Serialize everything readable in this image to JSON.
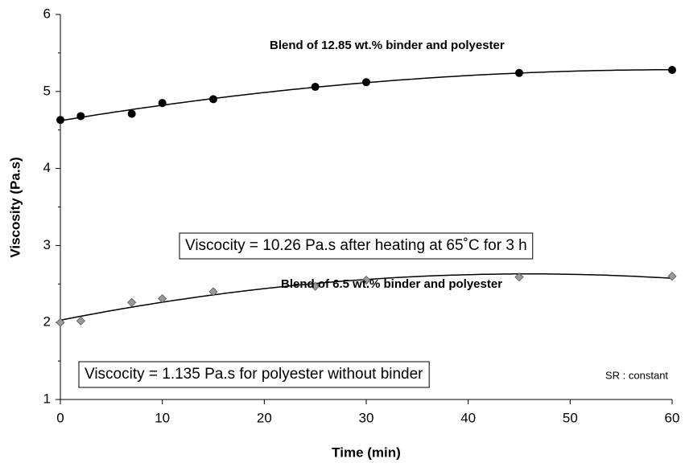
{
  "chart_data": {
    "type": "scatter",
    "x_label": "Time (min)",
    "y_label": "Viscosity (Pa.s)",
    "x": [
      0,
      2,
      7,
      10,
      15,
      25,
      30,
      45,
      60
    ],
    "series": [
      {
        "name": "Blend of 12.85 wt.% binder and polyester",
        "color": "#000000",
        "marker": "circle",
        "trendline": true,
        "values": [
          4.63,
          4.68,
          4.71,
          4.85,
          4.9,
          5.06,
          5.12,
          5.24,
          5.28
        ]
      },
      {
        "name": "Blend of 6.5 wt.% binder and polyester",
        "color": "#999999",
        "marker": "diamond",
        "trendline": true,
        "values": [
          2.0,
          2.02,
          2.26,
          2.31,
          2.4,
          2.47,
          2.55,
          2.59,
          2.6
        ]
      }
    ],
    "annotations": [
      "Viscocity = 10.26 Pa.s after heating at 65˚C for 3 h",
      "Viscocity = 1.135 Pa.s for polyester without binder",
      "SR : constant"
    ],
    "xlim": [
      0,
      60
    ],
    "xticks": [
      0,
      10,
      20,
      30,
      40,
      50,
      60
    ],
    "ylim": [
      1,
      6
    ],
    "yticks": [
      1,
      2,
      3,
      4,
      5,
      6
    ],
    "grid": false
  }
}
